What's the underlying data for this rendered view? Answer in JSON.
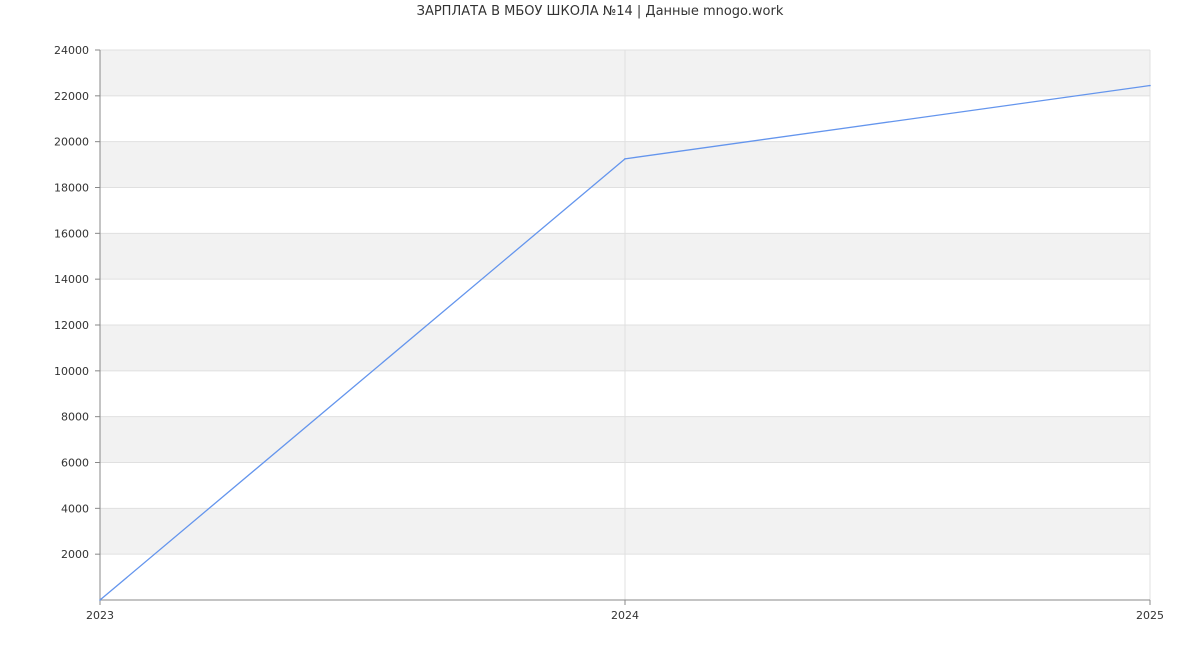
{
  "chart_data": {
    "type": "line",
    "title": "ЗАРПЛАТА В МБОУ ШКОЛА №14 | Данные mnogo.work",
    "xlabel": "",
    "ylabel": "",
    "categories": [
      "2023",
      "2024",
      "2025"
    ],
    "series": [
      {
        "values": [
          0,
          19250,
          22450
        ]
      }
    ],
    "y_ticks": [
      2000,
      4000,
      6000,
      8000,
      10000,
      12000,
      14000,
      16000,
      18000,
      20000,
      22000,
      24000
    ],
    "ylim": [
      0,
      24000
    ],
    "grid": true,
    "alternating_bands": true,
    "legend": "none",
    "colors": {
      "line": "#6495ed",
      "band": "#f2f2f2",
      "grid": "#e0e0e0",
      "axis": "#888888"
    }
  }
}
